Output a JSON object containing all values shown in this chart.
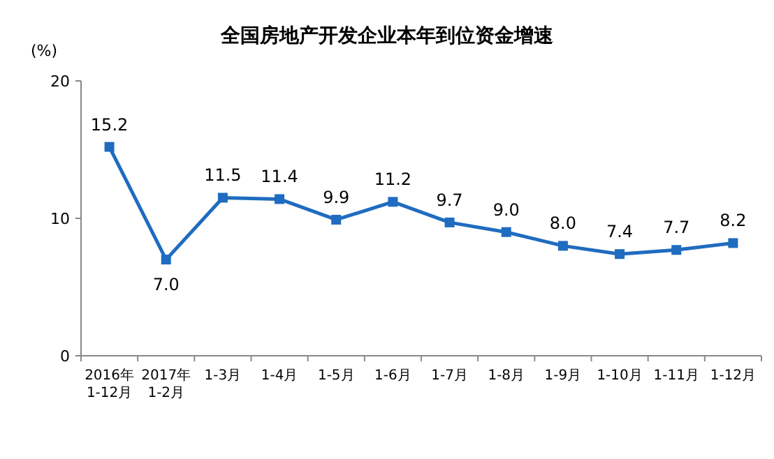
{
  "chart_data": {
    "type": "line",
    "title": "全国房地产开发企业本年到位资金增速",
    "ylabel": "(%)",
    "categories": [
      "2016年\n1-12月",
      "2017年\n1-2月",
      "1-3月",
      "1-4月",
      "1-5月",
      "1-6月",
      "1-7月",
      "1-8月",
      "1-9月",
      "1-10月",
      "1-11月",
      "1-12月"
    ],
    "series": [
      {
        "color": "#1f6cc0",
        "values": [
          15.2,
          7.0,
          11.5,
          11.4,
          9.9,
          11.2,
          9.7,
          9.0,
          8.0,
          7.4,
          7.7,
          8.2
        ],
        "value_labels": [
          "15.2",
          "7.0",
          "11.5",
          "11.4",
          "9.9",
          "11.2",
          "9.7",
          "9.0",
          "8.0",
          "7.4",
          "7.7",
          "8.2"
        ]
      }
    ],
    "ylim": [
      0,
      20
    ],
    "yticks": [
      0,
      10,
      20
    ],
    "marker": "square"
  }
}
